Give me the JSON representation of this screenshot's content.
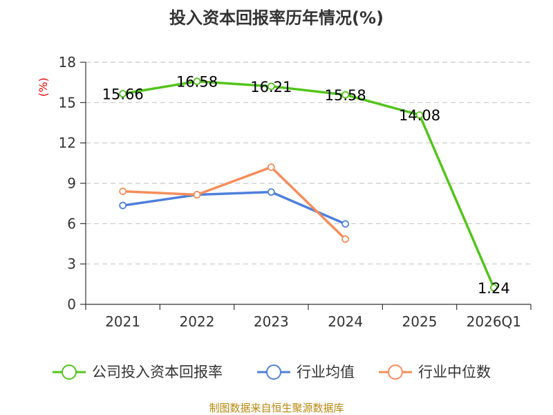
{
  "chart_data": {
    "type": "line",
    "title": "投入资本回报率历年情况(%)",
    "ylabel": "(%)",
    "xlabel": "",
    "categories": [
      "2021",
      "2022",
      "2023",
      "2024",
      "2025",
      "2026Q1"
    ],
    "ylim": [
      0,
      18
    ],
    "yticks": [
      0,
      3,
      6,
      9,
      12,
      15,
      18
    ],
    "grid": true,
    "legend_position": "bottom",
    "series": [
      {
        "name": "公司投入资本回报率",
        "color": "#52c41a",
        "values": [
          15.66,
          16.58,
          16.21,
          15.58,
          14.08,
          1.24
        ],
        "labels": [
          "15.66",
          "16.58",
          "16.21",
          "15.58",
          "14.08",
          "1.24"
        ]
      },
      {
        "name": "行业均值",
        "color": "#4e7fdc",
        "values": [
          7.35,
          8.15,
          8.35,
          5.98,
          null,
          null
        ]
      },
      {
        "name": "行业中位数",
        "color": "#f58d5a",
        "values": [
          8.4,
          8.15,
          10.2,
          4.85,
          null,
          null
        ]
      }
    ],
    "source": "制图数据来自恒生聚源数据库"
  }
}
